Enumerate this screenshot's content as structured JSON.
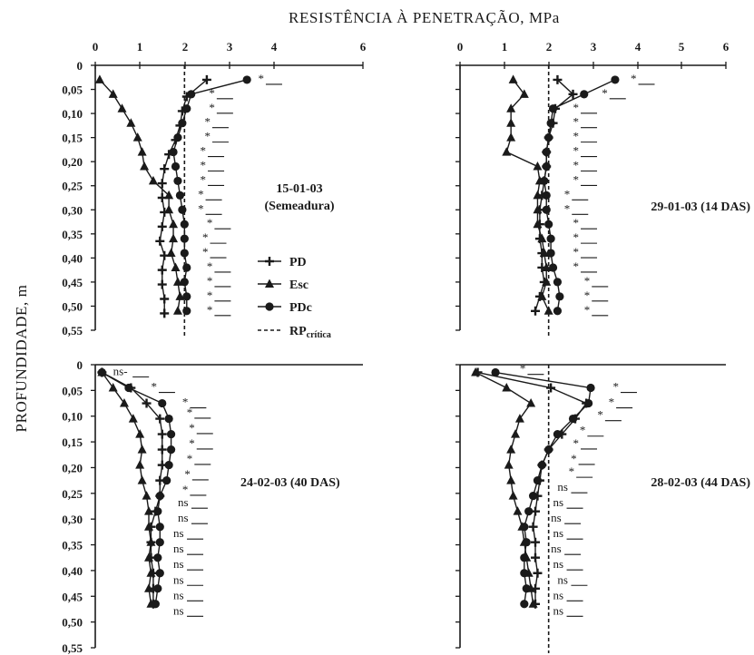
{
  "supxlabel": "RESISTÊNCIA À PENETRAÇÃO, MPa",
  "supylabel": "PROFUNDIDADE, m",
  "legend": [
    {
      "key": "PD",
      "label": "PD",
      "marker": "plus"
    },
    {
      "key": "Esc",
      "label": "Esc",
      "marker": "triangle"
    },
    {
      "key": "PDc",
      "label": "PDc",
      "marker": "circle"
    },
    {
      "key": "crit",
      "label_main": "RP",
      "label_sub": "crítica",
      "style": "dashed"
    }
  ],
  "colors": {
    "ink": "#1a1a1a"
  },
  "chart_data": [
    {
      "type": "line",
      "panel": "top-left",
      "title": [
        "15-01-03",
        "(Semeadura)"
      ],
      "x_ticks": [
        "0",
        "1",
        "2",
        "3",
        "4",
        "6"
      ],
      "x_tick_values": [
        0,
        1,
        2,
        3,
        4,
        6
      ],
      "x_ticks_on_top": true,
      "y_ticks": [
        "0",
        "0,05",
        "0,10",
        "0,15",
        "0,20",
        "0,25",
        "0,30",
        "0,35",
        "0,40",
        "0,45",
        "0,50",
        "0,55"
      ],
      "xlim": [
        0,
        6
      ],
      "ylim": [
        0,
        0.55
      ],
      "y_inverted": true,
      "critical_x": 2.0,
      "series": [
        {
          "name": "PD",
          "marker": "plus",
          "x": [
            2.5,
            2.05,
            1.95,
            1.9,
            1.8,
            1.65,
            1.55,
            1.5,
            1.5,
            1.55,
            1.5,
            1.45,
            1.55,
            1.5,
            1.5,
            1.55,
            1.55
          ],
          "y": [
            0.03,
            0.065,
            0.095,
            0.125,
            0.155,
            0.185,
            0.215,
            0.245,
            0.275,
            0.305,
            0.335,
            0.365,
            0.395,
            0.425,
            0.455,
            0.485,
            0.515
          ]
        },
        {
          "name": "Esc",
          "marker": "triangle",
          "x": [
            0.1,
            0.4,
            0.6,
            0.8,
            0.95,
            1.05,
            1.1,
            1.3,
            1.65,
            1.65,
            1.75,
            1.75,
            1.7,
            1.8,
            1.85,
            1.9,
            1.85
          ],
          "y": [
            0.03,
            0.06,
            0.09,
            0.12,
            0.15,
            0.18,
            0.21,
            0.24,
            0.27,
            0.3,
            0.33,
            0.36,
            0.39,
            0.42,
            0.45,
            0.48,
            0.51
          ]
        },
        {
          "name": "PDc",
          "marker": "circle",
          "x": [
            3.4,
            2.15,
            2.05,
            1.95,
            1.85,
            1.75,
            1.8,
            1.85,
            1.9,
            1.95,
            2.0,
            2.0,
            2.0,
            2.05,
            2.0,
            2.05,
            2.05
          ],
          "y": [
            0.03,
            0.06,
            0.09,
            0.12,
            0.15,
            0.18,
            0.21,
            0.24,
            0.27,
            0.3,
            0.33,
            0.36,
            0.39,
            0.42,
            0.45,
            0.48,
            0.51
          ]
        }
      ],
      "annotations": [
        "*",
        "*",
        "*",
        "*",
        "*",
        "*",
        "*",
        "*",
        "*",
        "*",
        "*",
        "*",
        "*",
        "*",
        "*",
        "*",
        "*"
      ],
      "annotation_y": [
        0.03,
        0.06,
        0.09,
        0.12,
        0.15,
        0.18,
        0.21,
        0.24,
        0.27,
        0.3,
        0.33,
        0.36,
        0.39,
        0.42,
        0.45,
        0.48,
        0.51
      ],
      "annotation_x": [
        3.65,
        2.55,
        2.55,
        2.45,
        2.45,
        2.35,
        2.35,
        2.35,
        2.3,
        2.3,
        2.5,
        2.4,
        2.4,
        2.5,
        2.5,
        2.5,
        2.5
      ]
    },
    {
      "type": "line",
      "panel": "top-right",
      "title": [
        "29-01-03 (14 DAS)"
      ],
      "x_ticks": [
        "0",
        "1",
        "2",
        "3",
        "4",
        "5",
        "6"
      ],
      "x_tick_values": [
        0,
        1,
        2,
        3,
        4,
        5,
        6
      ],
      "x_ticks_on_top": true,
      "y_ticks": [],
      "xlim": [
        0,
        6
      ],
      "ylim": [
        0,
        0.55
      ],
      "y_inverted": true,
      "critical_x": 2.0,
      "series": [
        {
          "name": "PD",
          "marker": "plus",
          "x": [
            2.2,
            2.55,
            2.15,
            2.1,
            2.0,
            1.95,
            1.95,
            1.9,
            1.85,
            1.8,
            1.8,
            1.8,
            1.85,
            1.85,
            1.9,
            1.8,
            1.7
          ],
          "y": [
            0.03,
            0.06,
            0.09,
            0.12,
            0.15,
            0.18,
            0.21,
            0.24,
            0.27,
            0.3,
            0.33,
            0.36,
            0.39,
            0.42,
            0.45,
            0.48,
            0.51
          ]
        },
        {
          "name": "Esc",
          "marker": "triangle",
          "x": [
            1.2,
            1.45,
            1.15,
            1.15,
            1.15,
            1.05,
            1.75,
            1.8,
            1.75,
            1.75,
            1.75,
            1.85,
            1.9,
            1.95,
            1.95,
            1.85,
            2.0
          ],
          "y": [
            0.03,
            0.06,
            0.09,
            0.12,
            0.15,
            0.18,
            0.21,
            0.24,
            0.27,
            0.3,
            0.33,
            0.36,
            0.39,
            0.42,
            0.45,
            0.48,
            0.51
          ]
        },
        {
          "name": "PDc",
          "marker": "circle",
          "x": [
            3.5,
            2.8,
            2.1,
            2.05,
            2.0,
            1.95,
            1.95,
            1.9,
            1.95,
            1.95,
            2.0,
            2.05,
            2.05,
            2.1,
            2.2,
            2.25,
            2.2
          ],
          "y": [
            0.03,
            0.06,
            0.09,
            0.12,
            0.15,
            0.18,
            0.21,
            0.24,
            0.27,
            0.3,
            0.33,
            0.36,
            0.39,
            0.42,
            0.45,
            0.48,
            0.51
          ]
        }
      ],
      "annotations": [
        "*",
        "*",
        "*",
        "*",
        "*",
        "*",
        "*",
        "*",
        "*",
        "*",
        "*",
        "*",
        "*",
        "*",
        "*",
        "*",
        "*"
      ],
      "annotation_y": [
        0.03,
        0.06,
        0.09,
        0.12,
        0.15,
        0.18,
        0.21,
        0.24,
        0.27,
        0.3,
        0.33,
        0.36,
        0.39,
        0.42,
        0.45,
        0.48,
        0.51
      ],
      "annotation_x": [
        3.85,
        3.2,
        2.55,
        2.55,
        2.55,
        2.55,
        2.55,
        2.55,
        2.35,
        2.35,
        2.55,
        2.55,
        2.55,
        2.55,
        2.8,
        2.8,
        2.8
      ]
    },
    {
      "type": "line",
      "panel": "bottom-left",
      "title": [
        "24-02-03 (40 DAS)"
      ],
      "x_ticks": [],
      "y_ticks": [
        "0",
        "0,05",
        "0,10",
        "0,15",
        "0,20",
        "0,25",
        "0,30",
        "0,35",
        "0,40",
        "0,45",
        "0,50",
        "0,55"
      ],
      "xlim": [
        0,
        6
      ],
      "ylim": [
        0,
        0.55
      ],
      "y_inverted": true,
      "critical_x": null,
      "series": [
        {
          "name": "PD",
          "marker": "plus",
          "x": [
            0.15,
            0.8,
            1.15,
            1.45,
            1.5,
            1.5,
            1.5,
            1.45,
            1.45,
            1.35,
            1.25,
            1.25,
            1.25,
            1.3,
            1.3,
            1.3
          ],
          "y": [
            0.015,
            0.045,
            0.075,
            0.105,
            0.135,
            0.165,
            0.195,
            0.225,
            0.255,
            0.285,
            0.315,
            0.345,
            0.375,
            0.405,
            0.435,
            0.465
          ]
        },
        {
          "name": "Esc",
          "marker": "triangle",
          "x": [
            0.15,
            0.4,
            0.65,
            0.85,
            1.0,
            1.05,
            1.0,
            1.05,
            1.15,
            1.2,
            1.2,
            1.25,
            1.2,
            1.25,
            1.2,
            1.25
          ],
          "y": [
            0.015,
            0.045,
            0.075,
            0.105,
            0.135,
            0.165,
            0.195,
            0.225,
            0.255,
            0.285,
            0.315,
            0.345,
            0.375,
            0.405,
            0.435,
            0.465
          ]
        },
        {
          "name": "PDc",
          "marker": "circle",
          "x": [
            0.15,
            0.75,
            1.5,
            1.65,
            1.7,
            1.7,
            1.65,
            1.6,
            1.45,
            1.4,
            1.45,
            1.45,
            1.4,
            1.45,
            1.4,
            1.35
          ],
          "y": [
            0.015,
            0.045,
            0.075,
            0.105,
            0.135,
            0.165,
            0.195,
            0.225,
            0.255,
            0.285,
            0.315,
            0.345,
            0.375,
            0.405,
            0.435,
            0.465
          ]
        }
      ],
      "annotations": [
        "ns-",
        "*",
        "*",
        "*",
        "*",
        "*",
        "*",
        "*",
        "*",
        "ns",
        "ns",
        "ns",
        "ns",
        "ns",
        "ns",
        "ns",
        "ns"
      ],
      "annotation_y": [
        0.015,
        0.045,
        0.075,
        0.095,
        0.125,
        0.155,
        0.185,
        0.215,
        0.245,
        0.27,
        0.3,
        0.33,
        0.36,
        0.39,
        0.42,
        0.45,
        0.48
      ],
      "annotation_x": [
        0.4,
        1.25,
        1.95,
        2.05,
        2.1,
        2.1,
        2.05,
        2.0,
        1.95,
        1.85,
        1.85,
        1.75,
        1.75,
        1.75,
        1.75,
        1.75,
        1.75
      ]
    },
    {
      "type": "line",
      "panel": "bottom-right",
      "title": [
        "28-02-03 (44 DAS)"
      ],
      "x_ticks": [],
      "y_ticks": [],
      "xlim": [
        0,
        6
      ],
      "ylim": [
        0,
        0.55
      ],
      "y_inverted": true,
      "critical_x": 2.0,
      "series": [
        {
          "name": "PD",
          "marker": "plus",
          "x": [
            0.4,
            2.05,
            2.85,
            2.6,
            2.3,
            2.0,
            1.85,
            1.8,
            1.75,
            1.7,
            1.65,
            1.7,
            1.7,
            1.75,
            1.7,
            1.7
          ],
          "y": [
            0.015,
            0.045,
            0.075,
            0.105,
            0.135,
            0.165,
            0.195,
            0.225,
            0.255,
            0.285,
            0.315,
            0.345,
            0.375,
            0.405,
            0.435,
            0.465
          ]
        },
        {
          "name": "Esc",
          "marker": "triangle",
          "x": [
            0.35,
            1.05,
            1.6,
            1.35,
            1.25,
            1.15,
            1.1,
            1.15,
            1.2,
            1.3,
            1.4,
            1.45,
            1.5,
            1.55,
            1.6,
            1.65
          ],
          "y": [
            0.015,
            0.045,
            0.075,
            0.105,
            0.135,
            0.165,
            0.195,
            0.225,
            0.255,
            0.285,
            0.315,
            0.345,
            0.375,
            0.405,
            0.435,
            0.465
          ]
        },
        {
          "name": "PDc",
          "marker": "circle",
          "x": [
            0.8,
            2.95,
            2.9,
            2.55,
            2.2,
            2.0,
            1.85,
            1.75,
            1.65,
            1.55,
            1.45,
            1.5,
            1.45,
            1.45,
            1.5,
            1.45
          ],
          "y": [
            0.015,
            0.045,
            0.075,
            0.105,
            0.135,
            0.165,
            0.195,
            0.225,
            0.255,
            0.285,
            0.315,
            0.345,
            0.375,
            0.405,
            0.435,
            0.465
          ]
        }
      ],
      "annotations": [
        "*",
        "*",
        "*",
        "*",
        "*",
        "*",
        "*",
        "*",
        "ns",
        "ns",
        "ns",
        "ns",
        "ns",
        "ns",
        "ns",
        "ns",
        "ns"
      ],
      "annotation_y": [
        0.01,
        0.045,
        0.075,
        0.1,
        0.13,
        0.155,
        0.185,
        0.21,
        0.24,
        0.27,
        0.3,
        0.33,
        0.36,
        0.39,
        0.42,
        0.45,
        0.48
      ],
      "annotation_x": [
        1.35,
        3.45,
        3.35,
        3.1,
        2.7,
        2.55,
        2.5,
        2.45,
        2.2,
        2.1,
        2.05,
        2.1,
        2.05,
        2.1,
        2.2,
        2.1,
        2.1
      ]
    }
  ]
}
